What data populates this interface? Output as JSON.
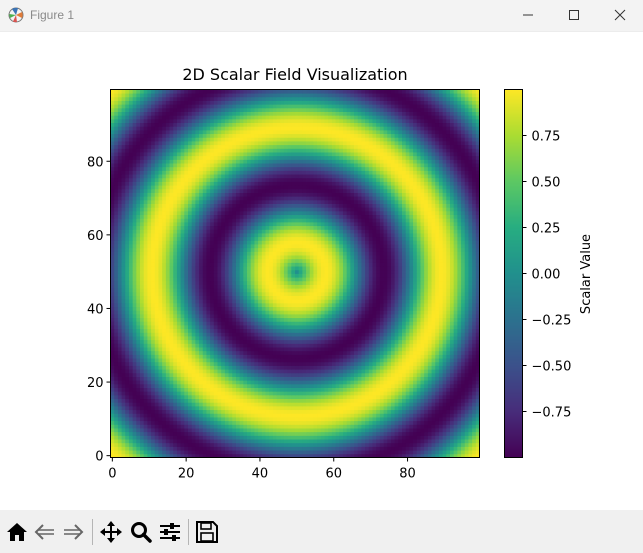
{
  "window": {
    "title": "Figure 1",
    "icons": [
      "matplotlib-icon",
      "minimize-icon",
      "maximize-icon",
      "close-icon"
    ]
  },
  "toolbar": {
    "buttons": [
      {
        "name": "home-button",
        "icon": "home-icon"
      },
      {
        "name": "back-button",
        "icon": "back-arrow-icon"
      },
      {
        "name": "forward-button",
        "icon": "forward-arrow-icon"
      },
      {
        "name": "pan-button",
        "icon": "move-icon"
      },
      {
        "name": "zoom-button",
        "icon": "magnifier-icon"
      },
      {
        "name": "configure-subplots-button",
        "icon": "sliders-icon"
      },
      {
        "name": "save-button",
        "icon": "floppy-disk-icon"
      }
    ]
  },
  "chart_data": {
    "type": "heatmap",
    "title": "2D Scalar Field Visualization",
    "colormap": "viridis",
    "grid_size": [
      100,
      100
    ],
    "field": "sin(r / 5), r = distance from center (50, 50)",
    "center": [
      50,
      50
    ],
    "wavelength": 31.4,
    "xlim": [
      -0.5,
      99.5
    ],
    "ylim": [
      -0.5,
      99.5
    ],
    "xticks": [
      0,
      20,
      40,
      60,
      80
    ],
    "yticks": [
      0,
      20,
      40,
      60,
      80
    ],
    "xlabel": "",
    "ylabel": "",
    "colorbar": {
      "label": "Scalar Value",
      "range": [
        -1,
        1
      ],
      "ticks": [
        0.75,
        0.5,
        0.25,
        0.0,
        -0.25,
        -0.5,
        -0.75
      ],
      "tick_labels": [
        "0.75",
        "0.50",
        "0.25",
        "0.00",
        "−0.25",
        "−0.50",
        "−0.75"
      ]
    },
    "grid": false
  }
}
